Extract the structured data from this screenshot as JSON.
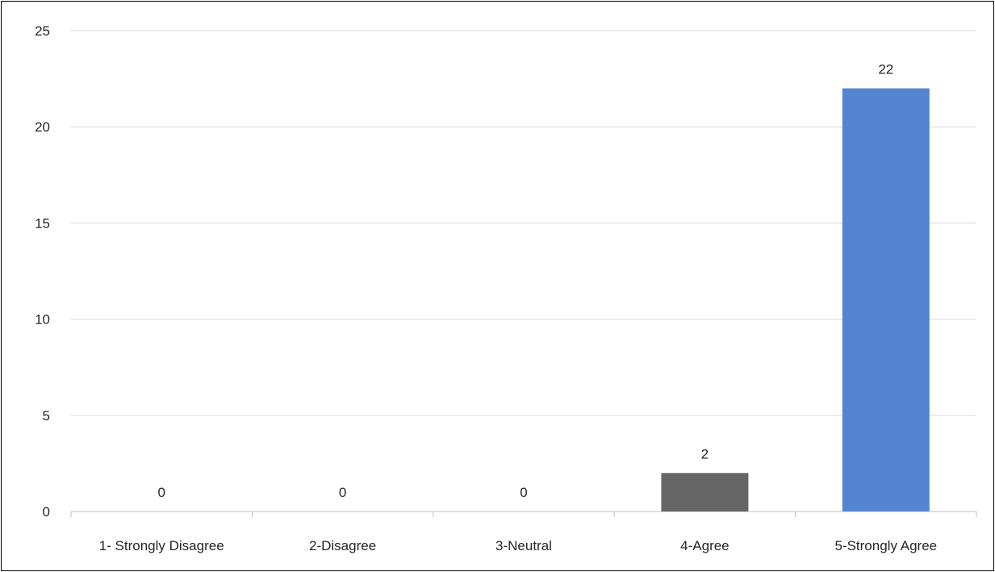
{
  "chart_data": {
    "type": "bar",
    "categories": [
      "1- Strongly Disagree",
      "2-Disagree",
      "3-Neutral",
      "4-Agree",
      "5-Strongly Agree"
    ],
    "values": [
      0,
      0,
      0,
      2,
      22
    ],
    "data_labels": [
      "0",
      "0",
      "0",
      "2",
      "22"
    ],
    "bar_colors": [
      "#808080",
      "#808080",
      "#808080",
      "#666666",
      "#5585D0"
    ],
    "ylim": [
      0,
      25
    ],
    "yticks": [
      0,
      5,
      10,
      15,
      20,
      25
    ],
    "ytick_labels": [
      "0",
      "5",
      "10",
      "15",
      "20",
      "25"
    ],
    "grid": true,
    "legend": "none",
    "title": "",
    "xlabel": "",
    "ylabel": ""
  }
}
